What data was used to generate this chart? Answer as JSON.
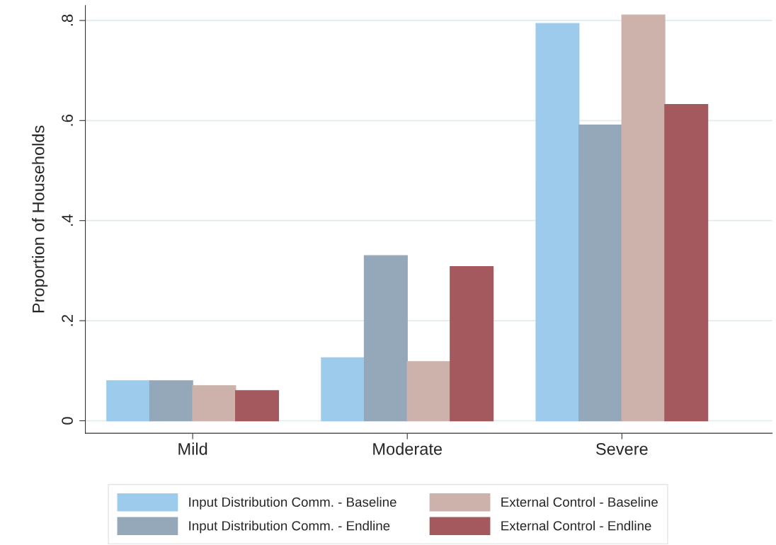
{
  "chart_data": {
    "type": "bar",
    "ylabel": "Proportion of Households",
    "categories": [
      "Mild",
      "Moderate",
      "Severe"
    ],
    "series": [
      {
        "name": "Input Distribution Comm. - Baseline",
        "color": "#9ccbec",
        "values": [
          0.08,
          0.126,
          0.794
        ]
      },
      {
        "name": "Input Distribution Comm. - Endline",
        "color": "#94a8ba",
        "values": [
          0.08,
          0.33,
          0.591
        ]
      },
      {
        "name": "External Control - Baseline",
        "color": "#cdb2ac",
        "values": [
          0.07,
          0.118,
          0.811
        ]
      },
      {
        "name": "External Control - Endline",
        "color": "#a3595d",
        "values": [
          0.06,
          0.308,
          0.632
        ]
      }
    ],
    "ylim": [
      -0.025,
      0.83
    ],
    "yticks": [
      {
        "value": 0,
        "label": "0"
      },
      {
        "value": 0.2,
        "label": ".2"
      },
      {
        "value": 0.4,
        "label": ".4"
      },
      {
        "value": 0.6,
        "label": ".6"
      },
      {
        "value": 0.8,
        "label": ".8"
      }
    ],
    "grid": "y",
    "legend": "bottom"
  }
}
